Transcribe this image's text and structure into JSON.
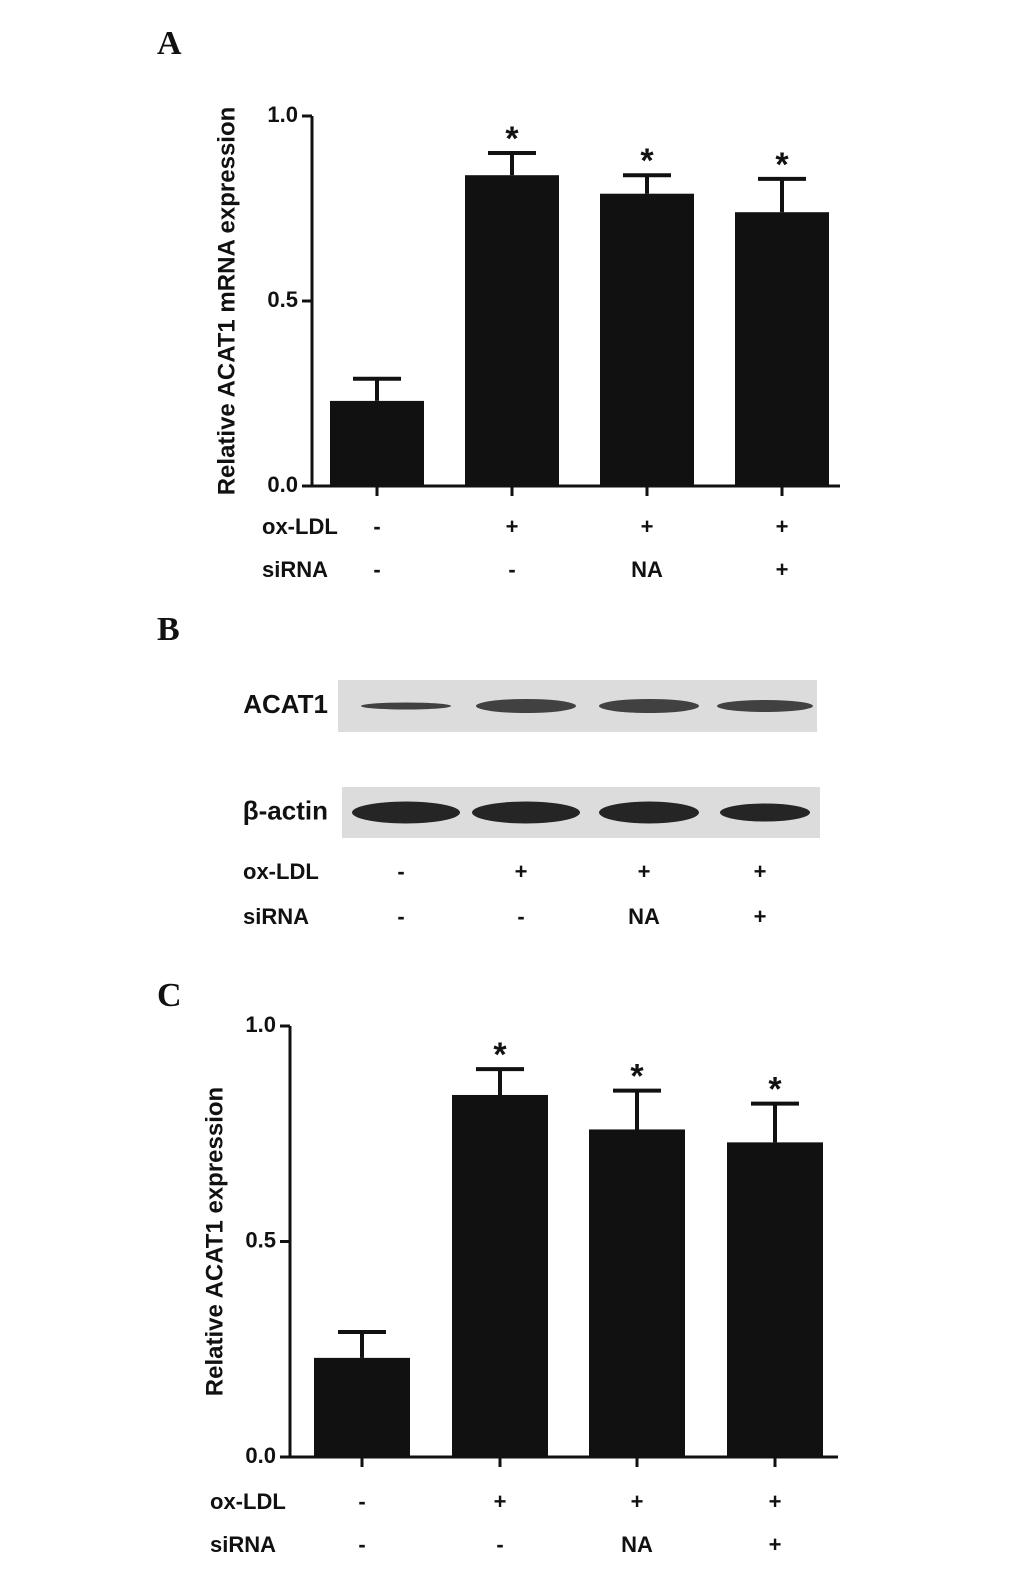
{
  "panel_labels": [
    "A",
    "B",
    "C"
  ],
  "chart_data": [
    {
      "type": "bar",
      "ylabel": "Relative ACAT1 mRNA expression",
      "condition_rows": [
        {
          "name": "ox-LDL",
          "values": [
            "-",
            "+",
            "+",
            "+"
          ]
        },
        {
          "name": "siRNA",
          "values": [
            "-",
            "-",
            "NA",
            "+"
          ]
        }
      ],
      "values": [
        0.23,
        0.84,
        0.79,
        0.74
      ],
      "errors": [
        0.06,
        0.06,
        0.05,
        0.09
      ],
      "annotations": [
        null,
        "*",
        "*",
        "*"
      ],
      "color": "#111111",
      "ylim": [
        0,
        1
      ],
      "yticks": [
        {
          "value": 0,
          "label": "0.0"
        },
        {
          "value": 0.5,
          "label": "0.5"
        },
        {
          "value": 1,
          "label": "1.0"
        }
      ]
    },
    {
      "type": "bar",
      "ylabel": "Relative ACAT1 expression",
      "condition_rows": [
        {
          "name": "ox-LDL",
          "values": [
            "-",
            "+",
            "+",
            "+"
          ]
        },
        {
          "name": "siRNA",
          "values": [
            "-",
            "-",
            "NA",
            "+"
          ]
        }
      ],
      "values": [
        0.23,
        0.84,
        0.76,
        0.73
      ],
      "errors": [
        0.06,
        0.06,
        0.09,
        0.09
      ],
      "annotations": [
        null,
        "*",
        "*",
        "*"
      ],
      "color": "#111111",
      "ylim": [
        0,
        1
      ],
      "yticks": [
        {
          "value": 0,
          "label": "0.0"
        },
        {
          "value": 0.5,
          "label": "0.5"
        },
        {
          "value": 1,
          "label": "1.0"
        }
      ]
    }
  ],
  "blot": {
    "rows": [
      "ACAT1",
      "β-actin"
    ],
    "condition_rows": [
      {
        "name": "ox-LDL",
        "values": [
          "-",
          "+",
          "+",
          "+"
        ]
      },
      {
        "name": "siRNA",
        "values": [
          "-",
          "-",
          "NA",
          "+"
        ]
      }
    ]
  }
}
